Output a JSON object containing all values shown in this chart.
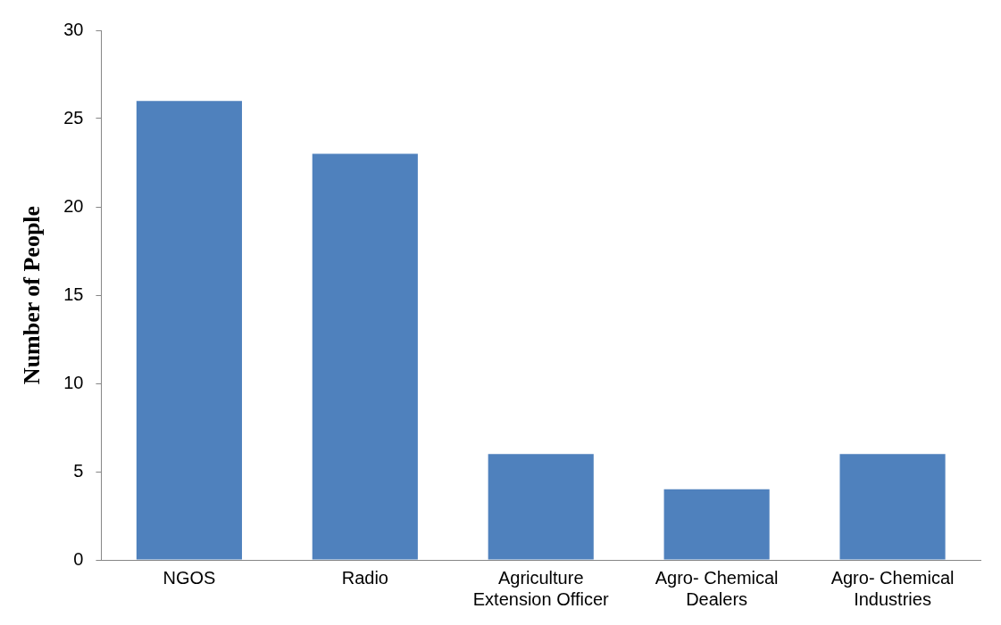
{
  "chart_data": {
    "type": "bar",
    "ylabel": "Number of People",
    "categories": [
      "NGOS",
      "Radio",
      "Agriculture Extension Officer",
      "Agro- Chemical Dealers",
      "Agro- Chemical Industries"
    ],
    "values": [
      26,
      23,
      6,
      4,
      6
    ],
    "color": "#4f81bd",
    "ylim": [
      0,
      30
    ],
    "yticks": [
      0,
      5,
      10,
      15,
      20,
      25,
      30
    ],
    "grid": false,
    "legend": false
  }
}
